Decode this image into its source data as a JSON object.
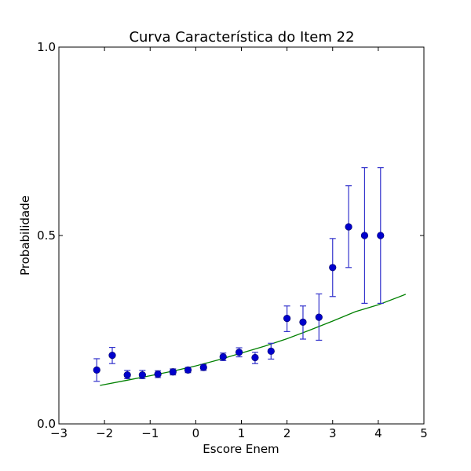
{
  "chart_data": {
    "type": "scatter",
    "title": "Curva Característica do Item 22",
    "xlabel": "Escore Enem",
    "ylabel": "Probabilidade",
    "xlim": [
      -3,
      5
    ],
    "ylim": [
      0,
      1
    ],
    "xticks": [
      -3,
      -2,
      -1,
      0,
      1,
      2,
      3,
      4,
      5
    ],
    "xtick_labels": [
      "−3",
      "−2",
      "−1",
      "0",
      "1",
      "2",
      "3",
      "4",
      "5"
    ],
    "yticks": [
      0,
      0.5,
      1
    ],
    "ytick_labels": [
      "0.0",
      "0.5",
      "1.0"
    ],
    "grid": false,
    "colors": {
      "points": "#0000cc",
      "errorbars": "#3333cc",
      "curve": "#008000",
      "axes": "#000000"
    },
    "points": [
      {
        "x": -2.17,
        "y": 0.143,
        "lo": 0.113,
        "hi": 0.173
      },
      {
        "x": -1.83,
        "y": 0.182,
        "lo": 0.16,
        "hi": 0.203
      },
      {
        "x": -1.5,
        "y": 0.13,
        "lo": 0.12,
        "hi": 0.142
      },
      {
        "x": -1.17,
        "y": 0.13,
        "lo": 0.12,
        "hi": 0.142
      },
      {
        "x": -0.83,
        "y": 0.132,
        "lo": 0.123,
        "hi": 0.141
      },
      {
        "x": -0.5,
        "y": 0.138,
        "lo": 0.13,
        "hi": 0.146
      },
      {
        "x": -0.17,
        "y": 0.143,
        "lo": 0.136,
        "hi": 0.15
      },
      {
        "x": 0.17,
        "y": 0.15,
        "lo": 0.142,
        "hi": 0.158
      },
      {
        "x": 0.6,
        "y": 0.178,
        "lo": 0.168,
        "hi": 0.188
      },
      {
        "x": 0.95,
        "y": 0.19,
        "lo": 0.178,
        "hi": 0.202
      },
      {
        "x": 1.3,
        "y": 0.176,
        "lo": 0.16,
        "hi": 0.19
      },
      {
        "x": 1.65,
        "y": 0.193,
        "lo": 0.172,
        "hi": 0.214
      },
      {
        "x": 2.0,
        "y": 0.28,
        "lo": 0.245,
        "hi": 0.313
      },
      {
        "x": 2.35,
        "y": 0.27,
        "lo": 0.225,
        "hi": 0.313
      },
      {
        "x": 2.7,
        "y": 0.283,
        "lo": 0.222,
        "hi": 0.345
      },
      {
        "x": 3.0,
        "y": 0.415,
        "lo": 0.338,
        "hi": 0.492
      },
      {
        "x": 3.35,
        "y": 0.523,
        "lo": 0.415,
        "hi": 0.632
      },
      {
        "x": 3.7,
        "y": 0.5,
        "lo": 0.32,
        "hi": 0.68
      },
      {
        "x": 4.05,
        "y": 0.5,
        "lo": 0.32,
        "hi": 0.68
      }
    ],
    "curve": {
      "x": [
        -2.1,
        -1.5,
        -1.0,
        -0.5,
        0.0,
        0.5,
        1.0,
        1.5,
        2.0,
        2.5,
        3.0,
        3.5,
        4.0,
        4.6
      ],
      "y": [
        0.102,
        0.116,
        0.128,
        0.14,
        0.154,
        0.17,
        0.188,
        0.206,
        0.226,
        0.249,
        0.273,
        0.298,
        0.316,
        0.344
      ]
    }
  }
}
